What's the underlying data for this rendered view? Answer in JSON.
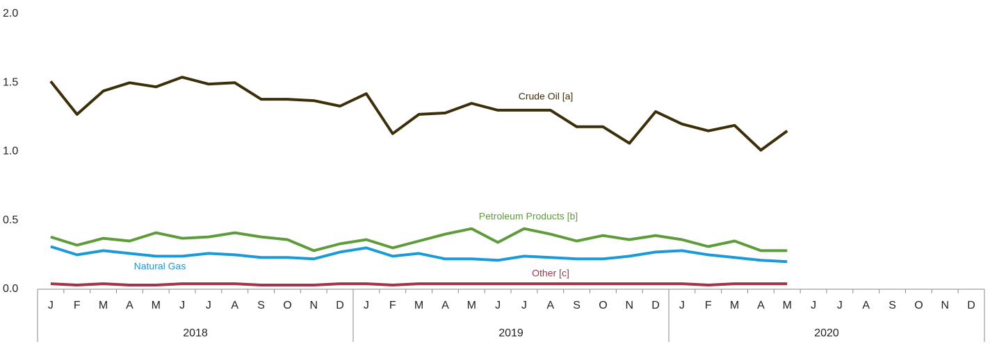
{
  "chart_data": {
    "type": "line",
    "categories": [
      "J",
      "F",
      "M",
      "A",
      "M",
      "J",
      "J",
      "A",
      "S",
      "O",
      "N",
      "D",
      "J",
      "F",
      "M",
      "A",
      "M",
      "J",
      "J",
      "A",
      "S",
      "O",
      "N",
      "D",
      "J",
      "F",
      "M",
      "A",
      "M",
      "J",
      "J",
      "A",
      "S",
      "O",
      "N",
      "D"
    ],
    "groups": [
      "2018",
      "2019",
      "2020"
    ],
    "ylim": [
      0,
      2
    ],
    "yticks": [
      {
        "value": 0,
        "label": "0.0"
      },
      0.5,
      {
        "value": 1,
        "label": "1.0"
      },
      1.5,
      {
        "value": 2,
        "label": "2.0"
      }
    ],
    "grid": false,
    "series": [
      {
        "name": "Crude Oil [a]",
        "color": "#3d2e0a",
        "values": [
          1.51,
          1.27,
          1.44,
          1.5,
          1.47,
          1.54,
          1.49,
          1.5,
          1.38,
          1.38,
          1.37,
          1.33,
          1.42,
          1.13,
          1.27,
          1.28,
          1.35,
          1.3,
          1.3,
          1.3,
          1.18,
          1.18,
          1.06,
          1.29,
          1.2,
          1.15,
          1.19,
          1.01,
          1.15,
          null,
          null,
          null,
          null,
          null,
          null,
          null
        ]
      },
      {
        "name": "Petroleum Products [b]",
        "color": "#5e9b3a",
        "values": [
          0.38,
          0.32,
          0.37,
          0.35,
          0.41,
          0.37,
          0.38,
          0.41,
          0.38,
          0.36,
          0.28,
          0.33,
          0.36,
          0.3,
          0.35,
          0.4,
          0.44,
          0.34,
          0.44,
          0.4,
          0.35,
          0.39,
          0.36,
          0.39,
          0.36,
          0.31,
          0.35,
          0.28,
          0.28,
          null,
          null,
          null,
          null,
          null,
          null,
          null
        ]
      },
      {
        "name": "Natural Gas",
        "color": "#1a9ad6",
        "values": [
          0.31,
          0.25,
          0.28,
          0.26,
          0.24,
          0.24,
          0.26,
          0.25,
          0.23,
          0.23,
          0.22,
          0.27,
          0.3,
          0.24,
          0.26,
          0.22,
          0.22,
          0.21,
          0.24,
          0.23,
          0.22,
          0.22,
          0.24,
          0.27,
          0.28,
          0.25,
          0.23,
          0.21,
          0.2,
          null,
          null,
          null,
          null,
          null,
          null,
          null
        ]
      },
      {
        "name": "Other [c]",
        "color": "#a33347",
        "values": [
          0.04,
          0.03,
          0.04,
          0.03,
          0.03,
          0.04,
          0.04,
          0.04,
          0.03,
          0.03,
          0.03,
          0.04,
          0.04,
          0.03,
          0.04,
          0.04,
          0.04,
          0.04,
          0.04,
          0.04,
          0.04,
          0.04,
          0.04,
          0.04,
          0.04,
          0.03,
          0.04,
          0.04,
          0.04,
          null,
          null,
          null,
          null,
          null,
          null,
          null
        ]
      }
    ]
  }
}
